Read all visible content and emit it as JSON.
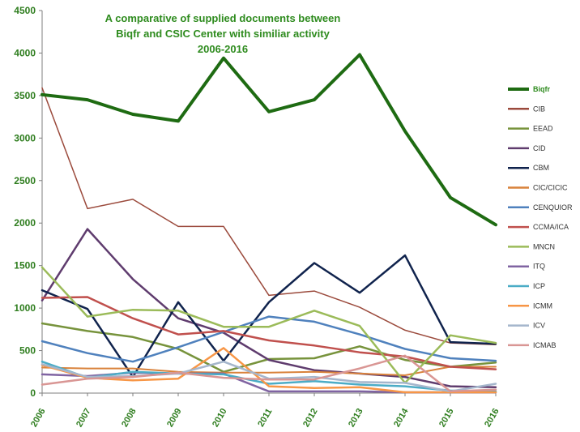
{
  "chart_data": {
    "type": "line",
    "title_lines": [
      "A comparative of supplied documents  between",
      "Biqfr and CSIC Center with similiar activity",
      "2006-2016"
    ],
    "categories": [
      "2006",
      "2007",
      "2008",
      "2009",
      "2010",
      "2011",
      "2012",
      "2013",
      "2014",
      "2015",
      "2016"
    ],
    "ylim": [
      0,
      4500
    ],
    "yticks": [
      "0",
      "500",
      "1000",
      "1500",
      "2000",
      "2500",
      "3000",
      "3500",
      "4000",
      "4500"
    ],
    "grid": false,
    "legend_position": "right",
    "series": [
      {
        "name": "Biqfr",
        "color": "#1e6b12",
        "width": 4,
        "values": [
          3510,
          3450,
          3280,
          3200,
          3940,
          3310,
          3450,
          3980,
          3080,
          2300,
          1980
        ]
      },
      {
        "name": "CIB",
        "color": "#9b4a3c",
        "width": 1.5,
        "values": [
          3590,
          2170,
          2280,
          1960,
          1960,
          1150,
          1200,
          1010,
          740,
          590,
          570
        ]
      },
      {
        "name": "EEAD",
        "color": "#77933c",
        "width": 2.5,
        "values": [
          820,
          730,
          660,
          520,
          250,
          400,
          410,
          550,
          390,
          310,
          360
        ]
      },
      {
        "name": "CID",
        "color": "#5f3c6e",
        "width": 2.5,
        "values": [
          1090,
          1930,
          1340,
          880,
          710,
          390,
          270,
          230,
          190,
          80,
          70
        ]
      },
      {
        "name": "CBM",
        "color": "#10234d",
        "width": 2.5,
        "values": [
          1210,
          990,
          190,
          1070,
          380,
          1070,
          1530,
          1180,
          1620,
          600,
          580
        ]
      },
      {
        "name": "CIC/CICIC",
        "color": "#d9823b",
        "width": 2,
        "values": [
          300,
          290,
          290,
          250,
          240,
          240,
          250,
          230,
          210,
          310,
          310
        ]
      },
      {
        "name": "CENQUIOR",
        "color": "#4f81bd",
        "width": 2.5,
        "values": [
          610,
          470,
          370,
          540,
          720,
          900,
          840,
          690,
          520,
          410,
          380
        ]
      },
      {
        "name": "CCMA/ICA",
        "color": "#c0504d",
        "width": 2.5,
        "values": [
          1120,
          1130,
          880,
          690,
          730,
          620,
          560,
          480,
          430,
          310,
          280
        ]
      },
      {
        "name": "MNCN",
        "color": "#9bbb59",
        "width": 2.5,
        "values": [
          1480,
          900,
          980,
          970,
          780,
          780,
          970,
          790,
          120,
          680,
          590
        ]
      },
      {
        "name": "ITQ",
        "color": "#8064a2",
        "width": 2.5,
        "values": [
          220,
          200,
          240,
          230,
          230,
          20,
          20,
          20,
          10,
          10,
          10
        ]
      },
      {
        "name": "ICP",
        "color": "#4bacc6",
        "width": 2.5,
        "values": [
          370,
          180,
          250,
          230,
          220,
          110,
          140,
          100,
          80,
          30,
          20
        ]
      },
      {
        "name": "ICMM",
        "color": "#f79646",
        "width": 2.5,
        "values": [
          330,
          180,
          150,
          170,
          530,
          80,
          60,
          70,
          10,
          10,
          10
        ]
      },
      {
        "name": "ICV",
        "color": "#a5b6cc",
        "width": 2.5,
        "values": [
          340,
          190,
          200,
          230,
          370,
          170,
          190,
          130,
          120,
          20,
          110
        ]
      },
      {
        "name": "ICMAB",
        "color": "#d99694",
        "width": 2.5,
        "values": [
          100,
          170,
          190,
          240,
          180,
          160,
          160,
          290,
          440,
          20,
          40
        ]
      }
    ]
  }
}
